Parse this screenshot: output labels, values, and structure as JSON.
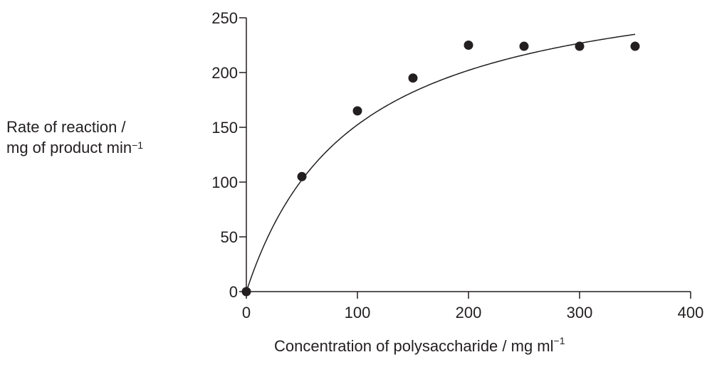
{
  "chart_data": {
    "type": "scatter",
    "xlabel": "Concentration of polysaccharide / mg ml",
    "xlabel_superscript": "−1",
    "ylabel_line1": "Rate of reaction /",
    "ylabel_line2": "mg of product min",
    "ylabel_superscript": "−1",
    "xlim": [
      0,
      400
    ],
    "ylim": [
      0,
      250
    ],
    "x_ticks": [
      0,
      100,
      200,
      300,
      400
    ],
    "y_ticks": [
      0,
      50,
      100,
      150,
      200,
      250
    ],
    "grid": false,
    "points": [
      {
        "x": 0,
        "y": 0
      },
      {
        "x": 50,
        "y": 105
      },
      {
        "x": 100,
        "y": 165
      },
      {
        "x": 150,
        "y": 195
      },
      {
        "x": 200,
        "y": 225
      },
      {
        "x": 250,
        "y": 224
      },
      {
        "x": 300,
        "y": 224
      },
      {
        "x": 350,
        "y": 224
      }
    ],
    "curve": {
      "type": "saturation",
      "vmax": 300,
      "km": 97,
      "x_end": 350
    },
    "colors": {
      "ink": "#231f20"
    }
  }
}
